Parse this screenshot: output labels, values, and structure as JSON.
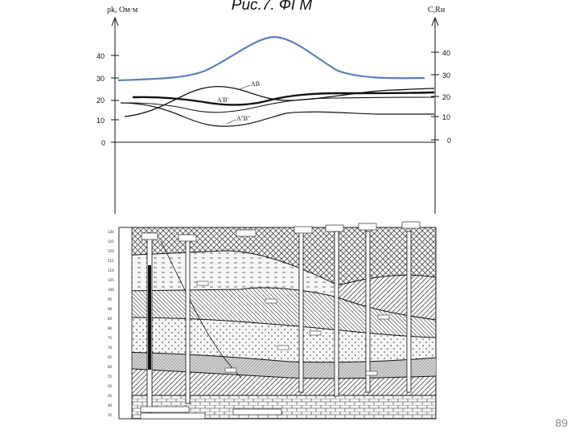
{
  "slide": {
    "title": "Рис.7. ФГМ",
    "page_number": "89"
  },
  "axes": {
    "left_label": "ρk, Ом·м",
    "right_label": "C,Rн",
    "left_ticks": [
      "40",
      "30",
      "20",
      "10",
      "0"
    ],
    "right_ticks": [
      "40",
      "30",
      "20",
      "10",
      "0"
    ]
  },
  "curve_labels": {
    "ab": "AB",
    "ab1": "A'B'",
    "ab2": "A''B''"
  },
  "colors": {
    "highlight_curve": "#5b7fbf",
    "ink": "#111111"
  },
  "section": {
    "description_icon": "geological-cross-section",
    "depth_ticks": [
      "130",
      "125",
      "120",
      "115",
      "110",
      "105",
      "100",
      "95",
      "90",
      "85",
      "80",
      "75",
      "70",
      "65",
      "60",
      "55",
      "50",
      "45",
      "40",
      "35"
    ]
  }
}
